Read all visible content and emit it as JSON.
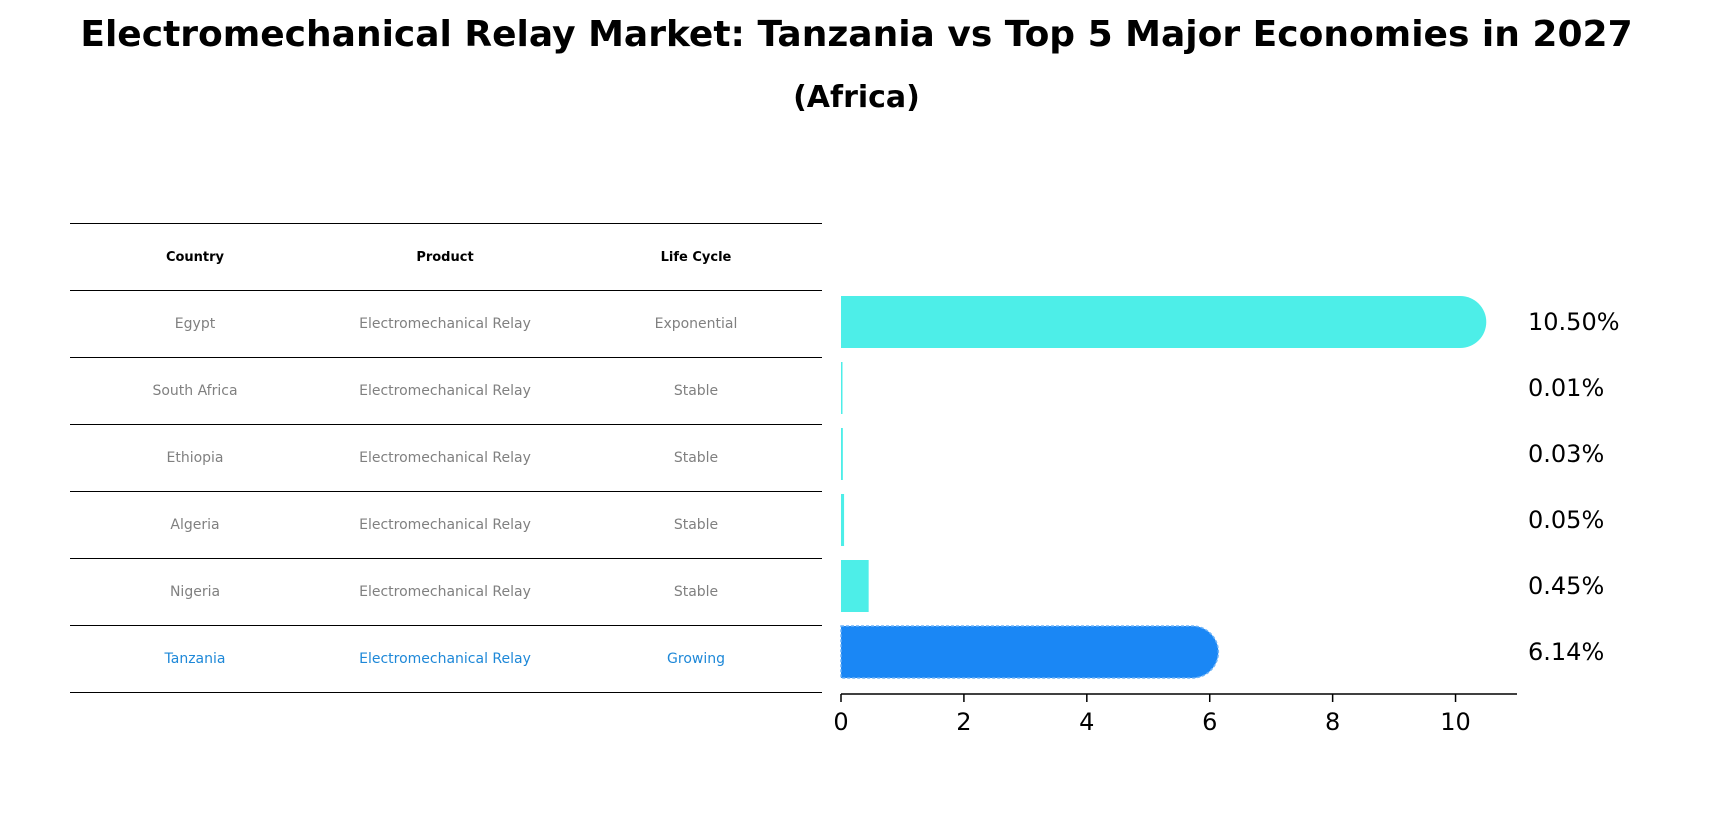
{
  "title": "Electromechanical Relay Market: Tanzania vs Top 5 Major Economies in 2027",
  "subtitle": "(Africa)",
  "table": {
    "headers": [
      "Country",
      "Product",
      "Life Cycle"
    ],
    "rows": [
      [
        "Egypt",
        "Electromechanical Relay",
        "Exponential"
      ],
      [
        "South Africa",
        "Electromechanical Relay",
        "Stable"
      ],
      [
        "Ethiopia",
        "Electromechanical Relay",
        "Stable"
      ],
      [
        "Algeria",
        "Electromechanical Relay",
        "Stable"
      ],
      [
        "Nigeria",
        "Electromechanical Relay",
        "Stable"
      ],
      [
        "Tanzania",
        "Electromechanical Relay",
        "Growing"
      ]
    ],
    "highlight_row": 5,
    "highlight_color": "#1e88d8"
  },
  "chart_data": {
    "type": "bar",
    "orientation": "horizontal",
    "categories": [
      "Egypt",
      "South Africa",
      "Ethiopia",
      "Algeria",
      "Nigeria",
      "Tanzania"
    ],
    "values": [
      10.5,
      0.01,
      0.03,
      0.05,
      0.45,
      6.14
    ],
    "value_labels": [
      "10.50%",
      "0.01%",
      "0.03%",
      "0.05%",
      "0.45%",
      "6.14%"
    ],
    "xlim": [
      0,
      11
    ],
    "xticks": [
      0,
      2,
      4,
      6,
      8,
      10
    ],
    "grid": false,
    "colors": {
      "default": "#4deee8",
      "highlight": "#1a87f5"
    },
    "highlight_index": 5
  }
}
